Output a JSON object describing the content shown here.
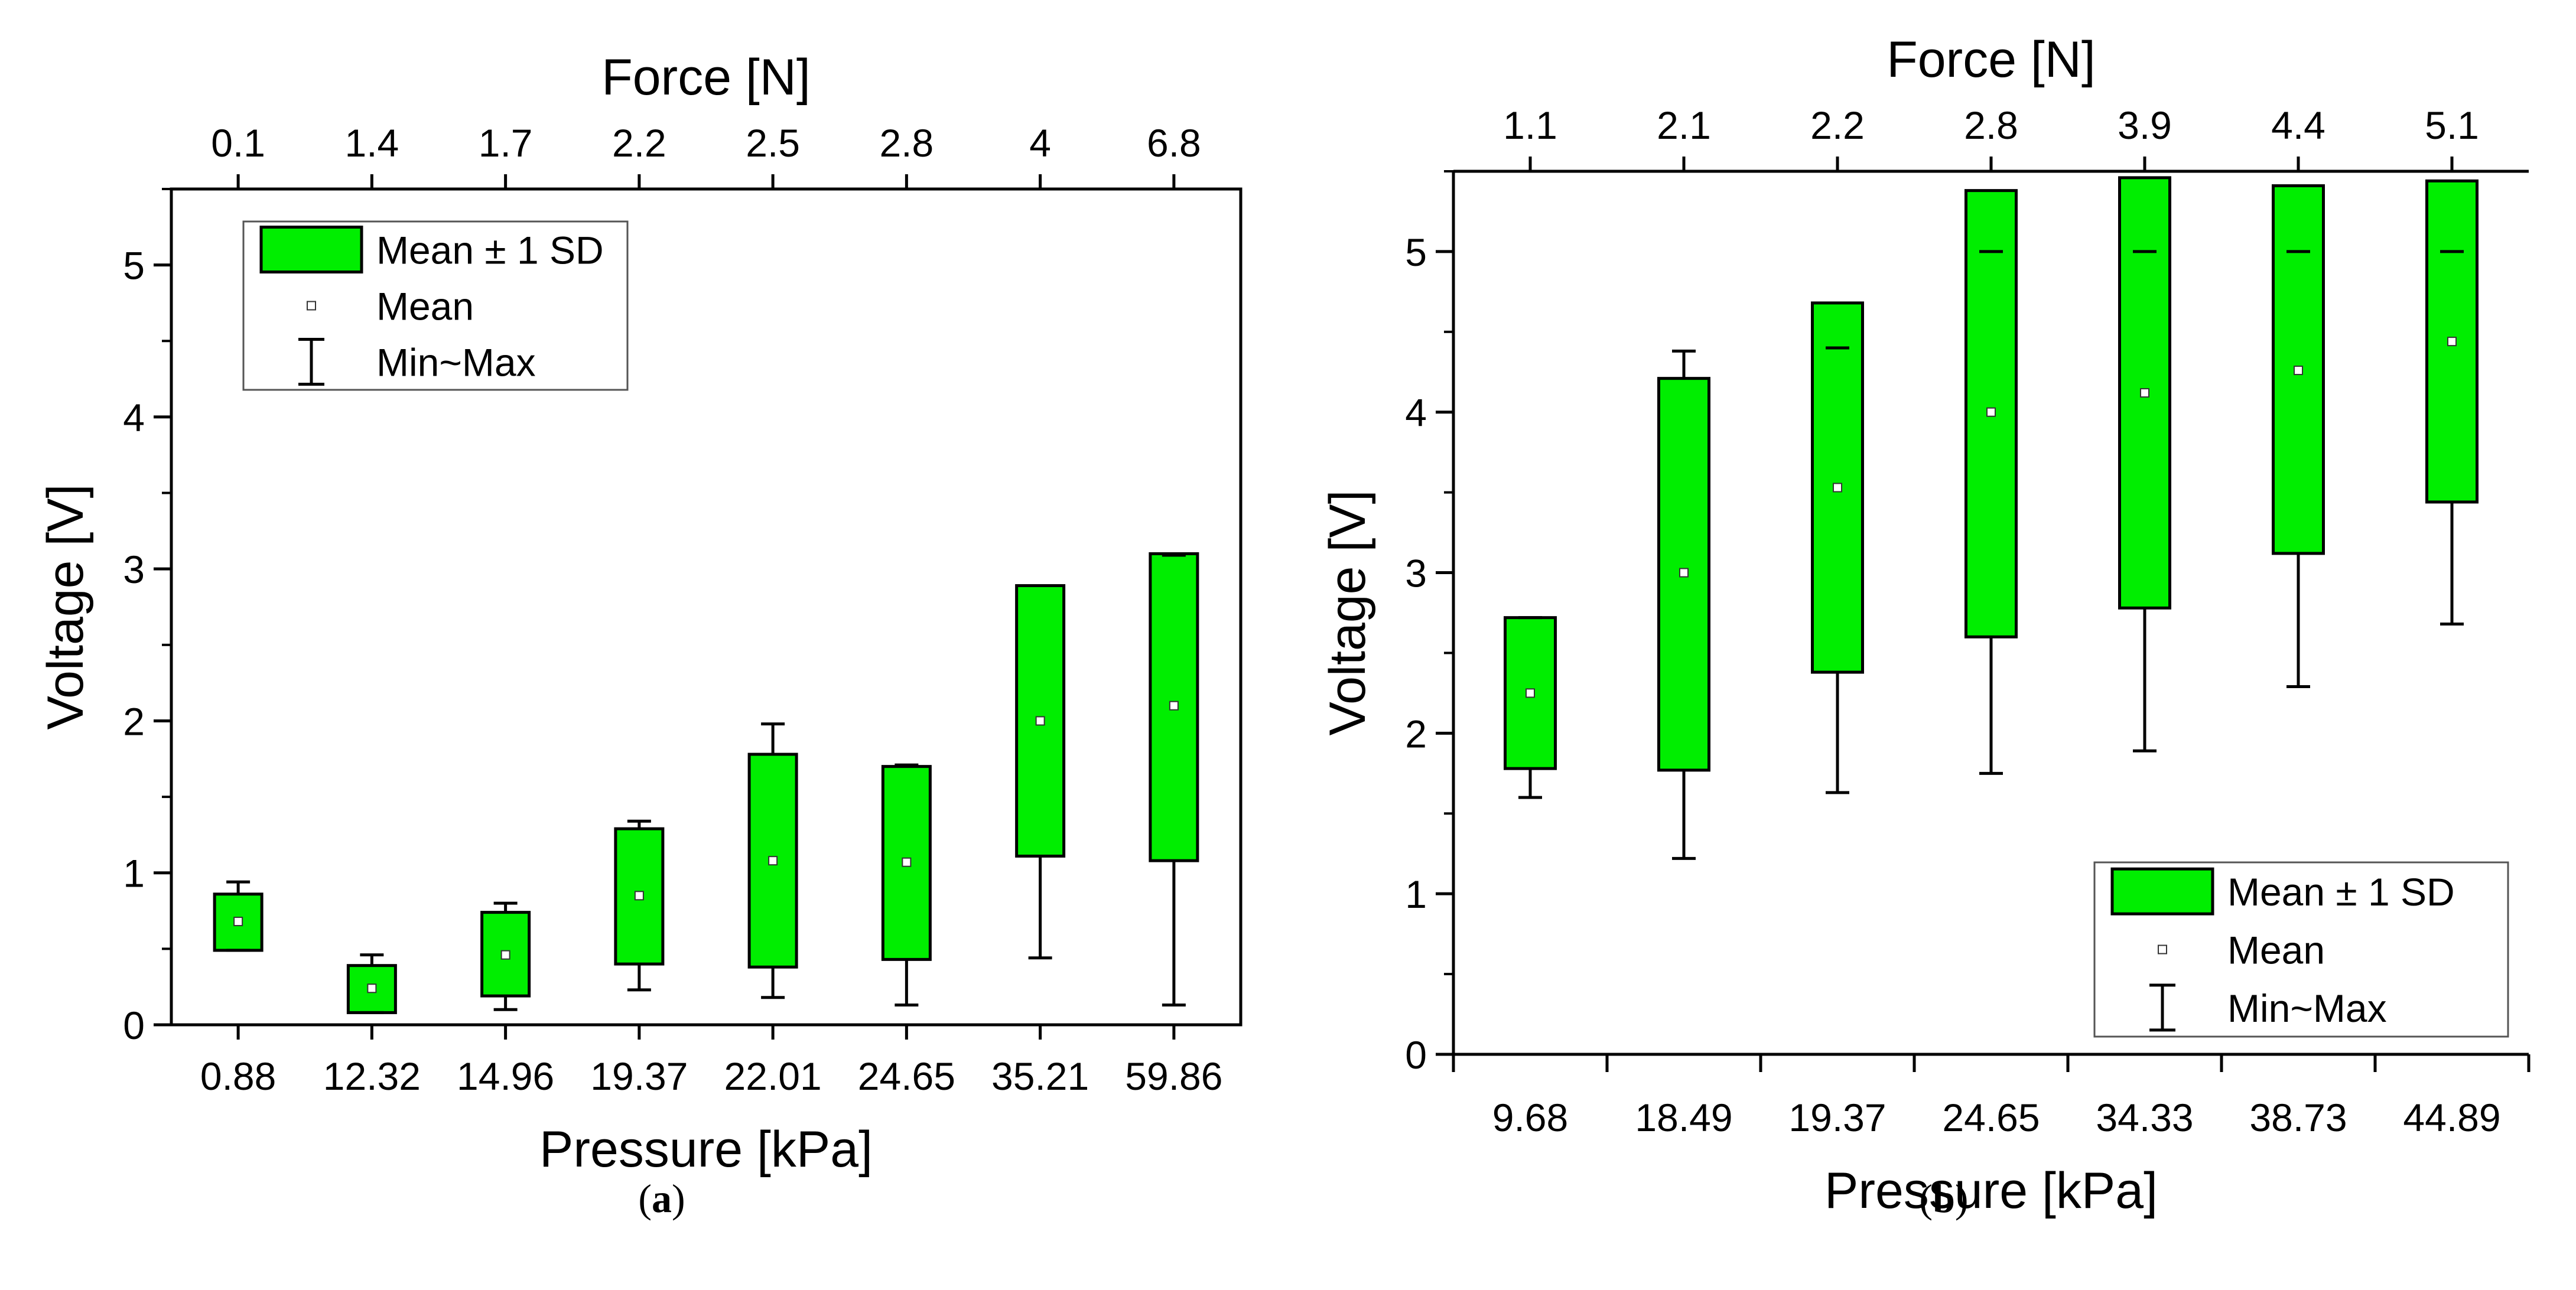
{
  "colors": {
    "box_fill": "#00ee00",
    "axis": "#000000",
    "background": "#ffffff"
  },
  "chart_data": [
    {
      "type": "box",
      "caption": "a",
      "title": "",
      "xlabel": "Pressure [kPa]",
      "top_xlabel": "Force [N]",
      "ylabel": "Voltage [V]",
      "ylim": [
        0,
        5.5
      ],
      "yticks": [
        "0",
        "1",
        "2",
        "3",
        "4",
        "5"
      ],
      "categories": [
        "0.88",
        "12.32",
        "14.96",
        "19.37",
        "22.01",
        "24.65",
        "35.21",
        "59.86"
      ],
      "top_categories": [
        "0.1",
        "1.4",
        "1.7",
        "2.2",
        "2.5",
        "2.8",
        "4",
        "6.8"
      ],
      "series": [
        {
          "name": "Mean ± 1 SD",
          "mean": [
            0.68,
            0.24,
            0.46,
            0.85,
            1.08,
            1.07,
            2.0,
            2.1
          ],
          "sd_low": [
            0.49,
            0.08,
            0.19,
            0.4,
            0.38,
            0.43,
            1.11,
            1.08
          ],
          "sd_high": [
            0.86,
            0.39,
            0.74,
            1.29,
            1.78,
            1.7,
            2.89,
            3.1
          ],
          "min": [
            0.49,
            0.08,
            0.1,
            0.23,
            0.18,
            0.13,
            0.44,
            0.13
          ],
          "max": [
            0.94,
            0.46,
            0.8,
            1.34,
            1.98,
            1.71,
            2.89,
            3.09
          ]
        }
      ],
      "legend": {
        "position": "top-left",
        "entries": [
          "Mean ± 1 SD",
          "Mean",
          "Min~Max"
        ]
      }
    },
    {
      "type": "box",
      "caption": "b",
      "title": "",
      "xlabel": "Pressure [kPa]",
      "top_xlabel": "Force [N]",
      "ylabel": "Voltage [V]",
      "ylim": [
        0,
        5.5
      ],
      "yticks": [
        "0",
        "1",
        "2",
        "3",
        "4",
        "5"
      ],
      "categories": [
        "9.68",
        "18.49",
        "19.37",
        "24.65",
        "34.33",
        "38.73",
        "44.89"
      ],
      "top_categories": [
        "1.1",
        "2.1",
        "2.2",
        "2.8",
        "3.9",
        "4.4",
        "5.1"
      ],
      "series": [
        {
          "name": "Mean ± 1 SD",
          "mean": [
            2.25,
            3.0,
            3.53,
            4.0,
            4.12,
            4.26,
            4.44
          ],
          "sd_low": [
            1.78,
            1.77,
            2.38,
            2.6,
            2.78,
            3.12,
            3.44
          ],
          "sd_high": [
            2.72,
            4.21,
            4.68,
            5.38,
            5.46,
            5.41,
            5.44
          ],
          "min": [
            1.6,
            1.22,
            1.63,
            1.75,
            1.89,
            2.29,
            2.68
          ],
          "max": [
            2.72,
            4.38,
            4.4,
            5.0,
            5.0,
            5.0,
            5.0
          ]
        }
      ],
      "legend": {
        "position": "bottom-right",
        "entries": [
          "Mean ± 1 SD",
          "Mean",
          "Min~Max"
        ]
      }
    }
  ]
}
